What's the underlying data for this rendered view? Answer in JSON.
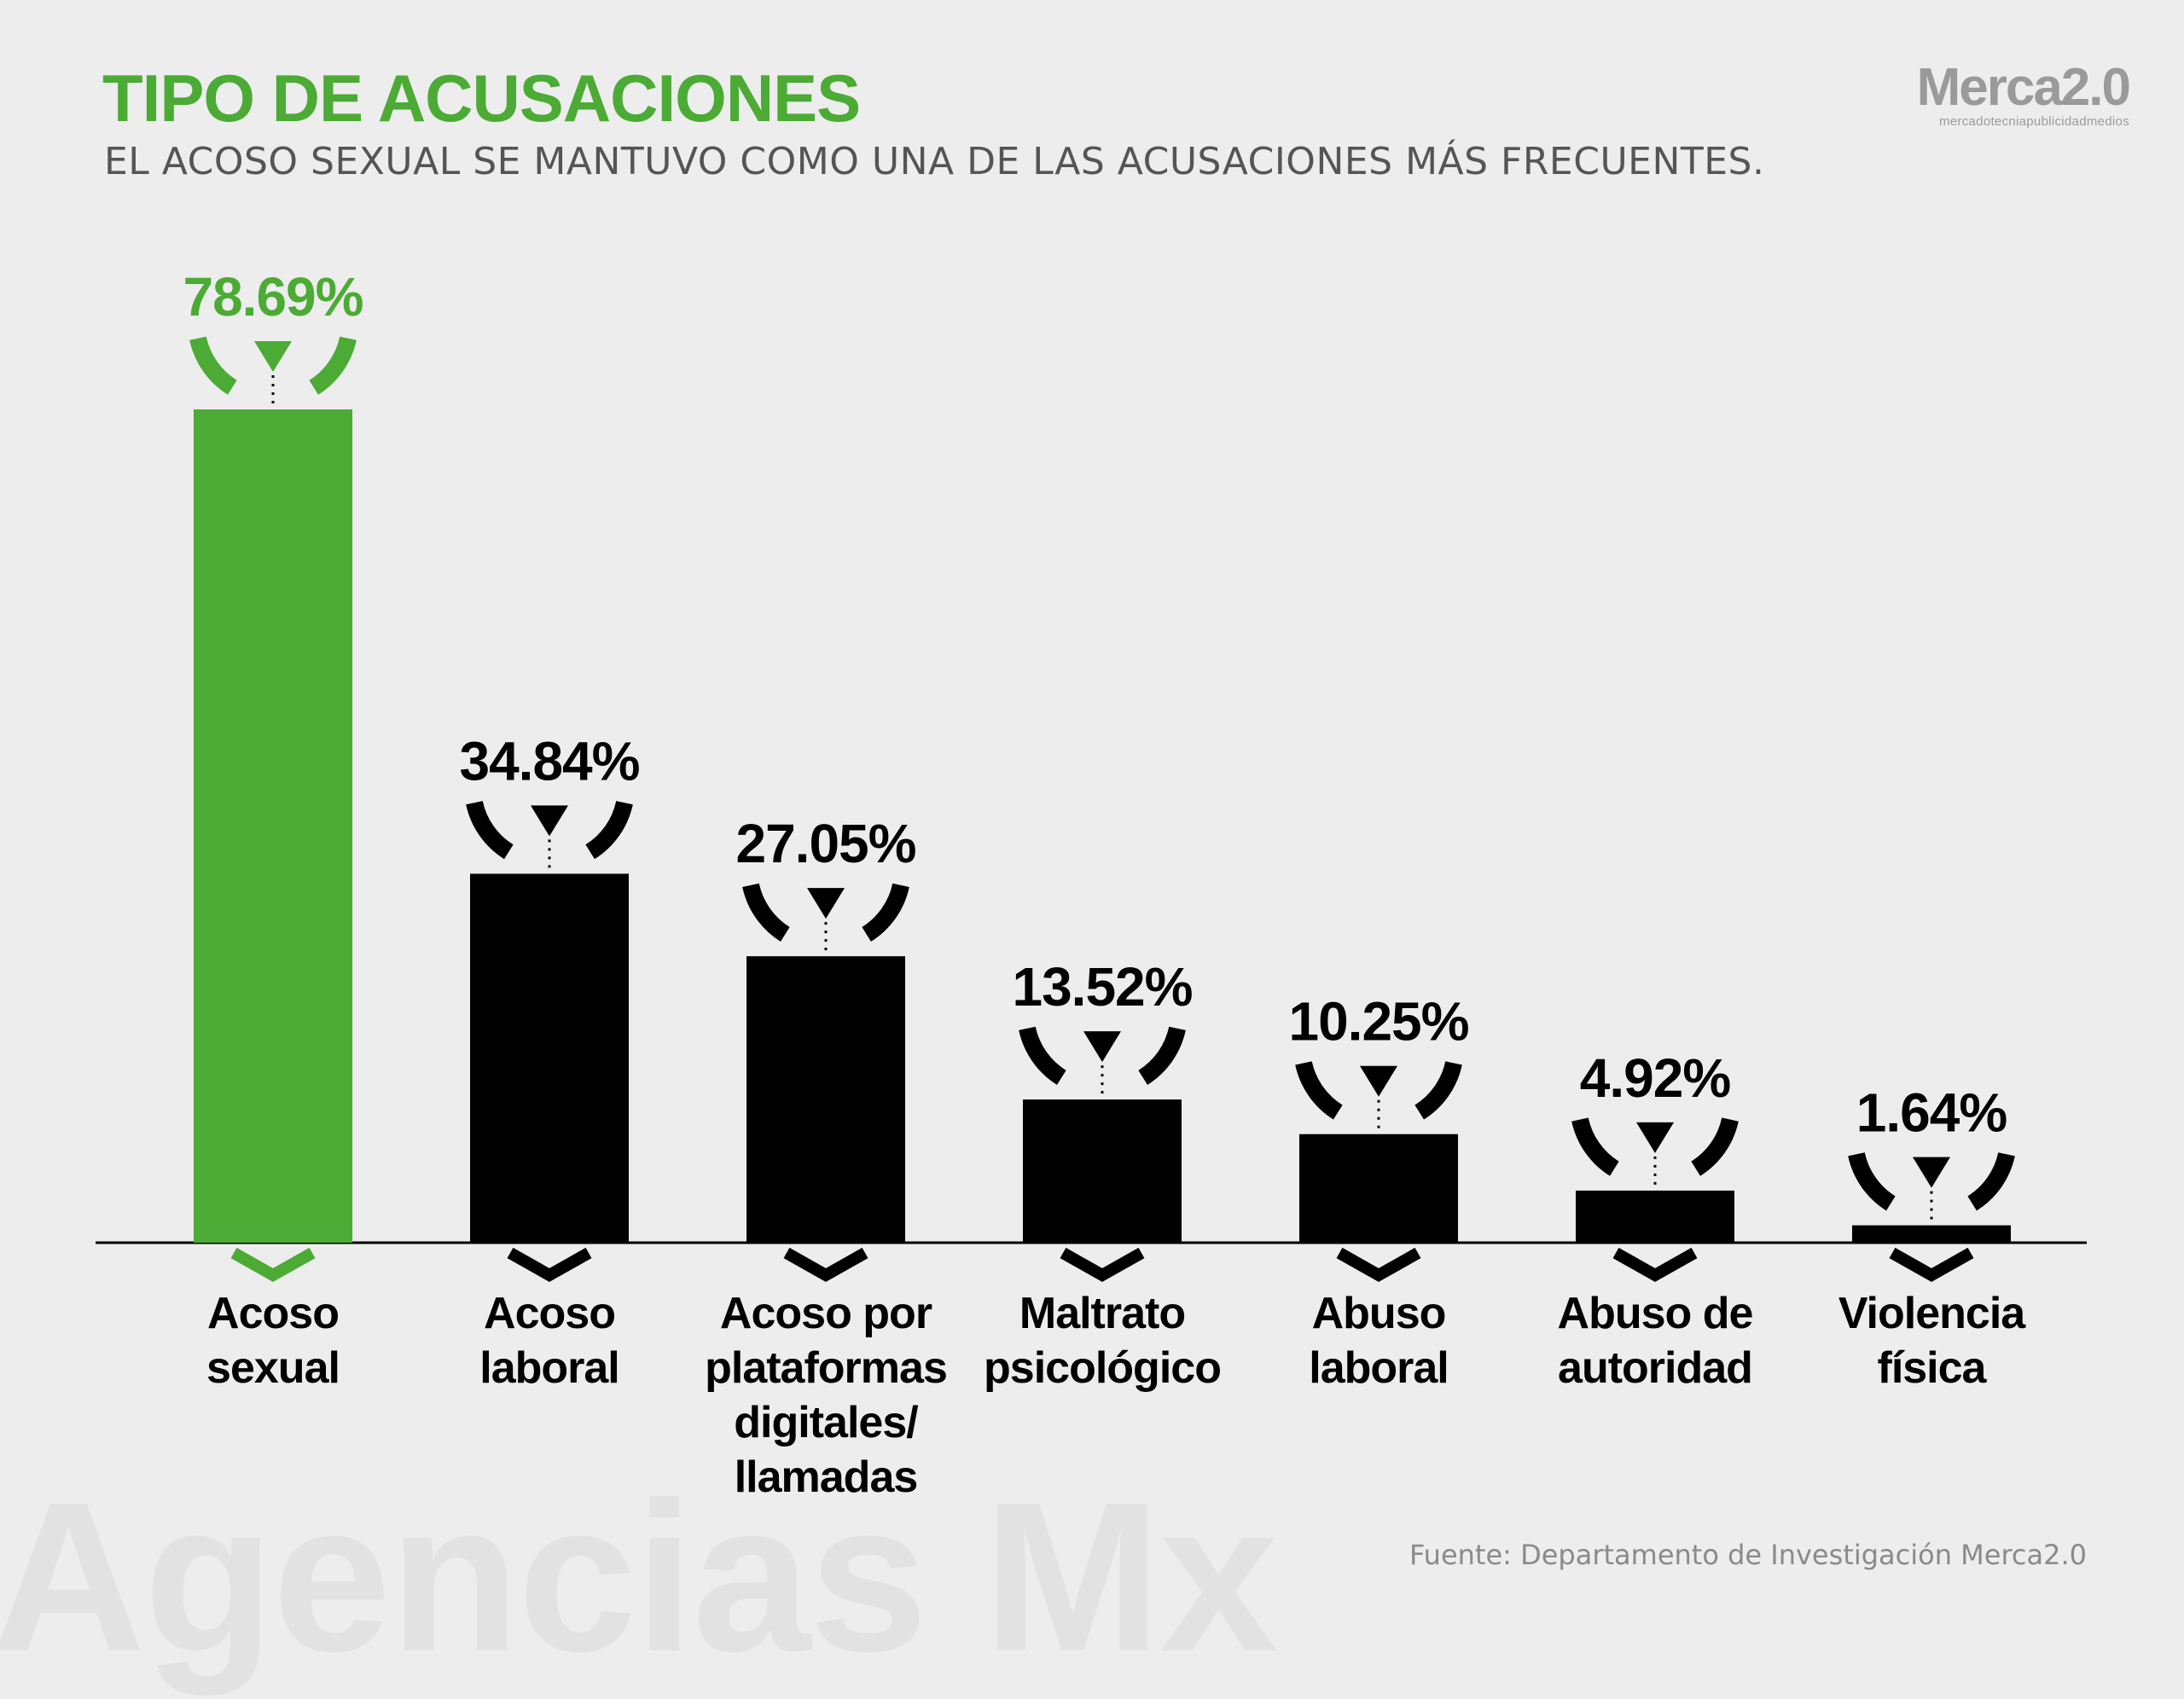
{
  "header": {
    "title": "TIPO DE ACUSACIONES",
    "subtitle": "EL ACOSO SEXUAL SE MANTUVO COMO UNA DE LAS ACUSACIONES MÁS FRECUENTES."
  },
  "logo": {
    "main": "Merca2.0",
    "sub": "mercadotecniapublicidadmedios"
  },
  "watermark": "Agencias Mx",
  "source": "Fuente:  Departamento de Investigación Merca2.0",
  "colors": {
    "highlight": "#4bab34",
    "bar": "#000000",
    "background": "#ededed",
    "text": "#000000"
  },
  "chart_data": {
    "type": "bar",
    "title": "TIPO DE ACUSACIONES",
    "xlabel": "",
    "ylabel": "",
    "grid": false,
    "ylim": [
      0,
      78.69
    ],
    "categories": [
      [
        "Acoso",
        "sexual"
      ],
      [
        "Acoso",
        "laboral"
      ],
      [
        "Acoso por",
        "plataformas",
        "digitales/",
        "llamadas"
      ],
      [
        "Maltrato",
        "psicológico"
      ],
      [
        "Abuso",
        "laboral"
      ],
      [
        "Abuso de",
        "autoridad"
      ],
      [
        "Violencia",
        "física"
      ]
    ],
    "values": [
      78.69,
      34.84,
      27.05,
      13.52,
      10.25,
      4.92,
      1.64
    ],
    "labels": [
      "78.69%",
      "34.84%",
      "27.05%",
      "13.52%",
      "10.25%",
      "4.92%",
      "1.64%"
    ],
    "highlight_index": 0
  }
}
